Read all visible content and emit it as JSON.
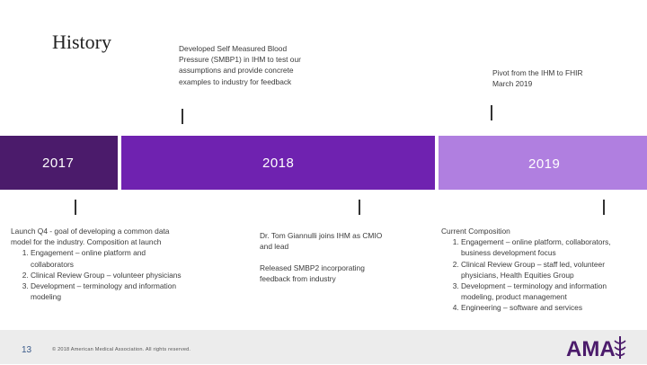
{
  "title": "History",
  "notes": {
    "top_2018": "Developed Self Measured Blood Pressure (SMBP1) in IHM to test our assumptions and provide concrete examples to industry for feedback",
    "top_2019": "Pivot from the IHM to FHIR March 2019",
    "bottom_2017_intro": "Launch Q4 - goal of developing a common data model for the industry. Composition at launch",
    "bottom_2017_list": [
      "Engagement – online platform and collaborators",
      "Clinical Review Group – volunteer physicians",
      "Development – terminology and information modeling"
    ],
    "bottom_2018_a": "Dr. Tom Giannulli joins IHM as CMIO and lead",
    "bottom_2018_b": "Released SMBP2 incorporating feedback from industry",
    "bottom_2019_intro": "Current Composition",
    "bottom_2019_list": [
      "Engagement – online platform, collaborators, business development focus",
      "Clinical Review Group – staff led, volunteer physicians, Health Equities Group",
      "Development – terminology and information modeling, product management",
      "Engineering – software and services"
    ]
  },
  "timeline": {
    "years": [
      "2017",
      "2018",
      "2019"
    ],
    "colors": [
      "#4b1b6b",
      "#6f22b0",
      "#b07fe0"
    ]
  },
  "footer": {
    "page_number": "13",
    "copyright": "© 2018 American Medical Association. All rights reserved.",
    "logo_text": "AMA"
  }
}
